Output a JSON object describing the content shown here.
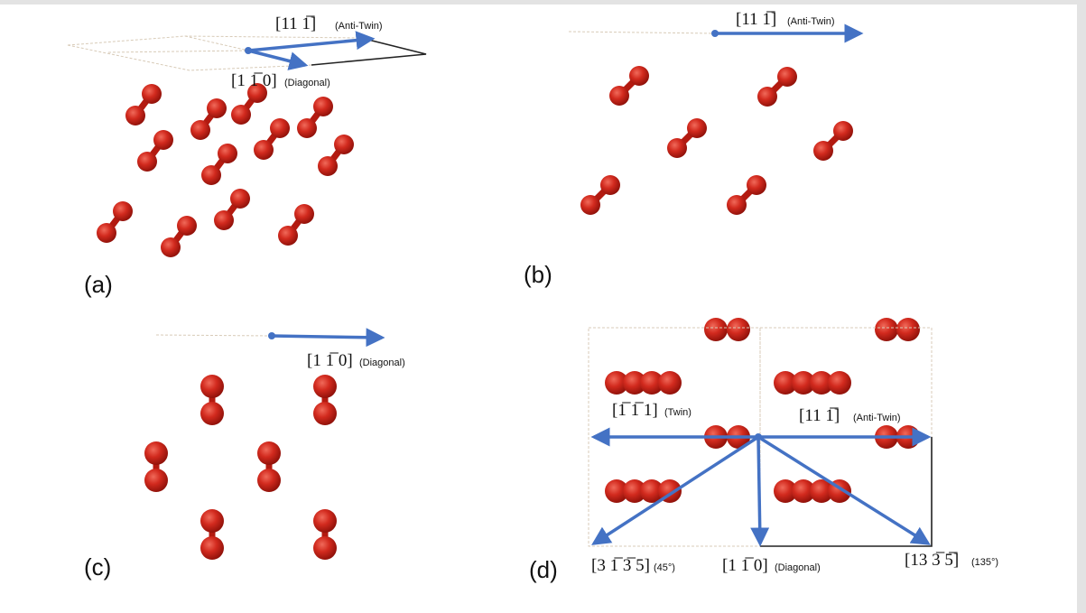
{
  "panels": [
    {
      "label": "(a)",
      "directions": [
        {
          "index": "[11 1̅]",
          "name": "(Anti-Twin)"
        },
        {
          "index": "[1 1̅ 0]",
          "name": "(Diagonal)"
        }
      ]
    },
    {
      "label": "(b)",
      "directions": [
        {
          "index": "[11 1̅]",
          "name": "(Anti-Twin)"
        }
      ]
    },
    {
      "label": "(c)",
      "directions": [
        {
          "index": "[1 1̅ 0]",
          "name": "(Diagonal)"
        }
      ]
    },
    {
      "label": "(d)",
      "directions": [
        {
          "index": "[1̅ 1̅ 1]",
          "name": "(Twin)"
        },
        {
          "index": "[11 1̅]",
          "name": "(Anti-Twin)"
        },
        {
          "index": "[3 1̅ 3̅ 5]",
          "name": "(45°)"
        },
        {
          "index": "[1 1̅ 0]",
          "name": "(Diagonal)"
        },
        {
          "index": "[13 3̅ 5̅]",
          "name": "(135°)"
        }
      ]
    }
  ]
}
